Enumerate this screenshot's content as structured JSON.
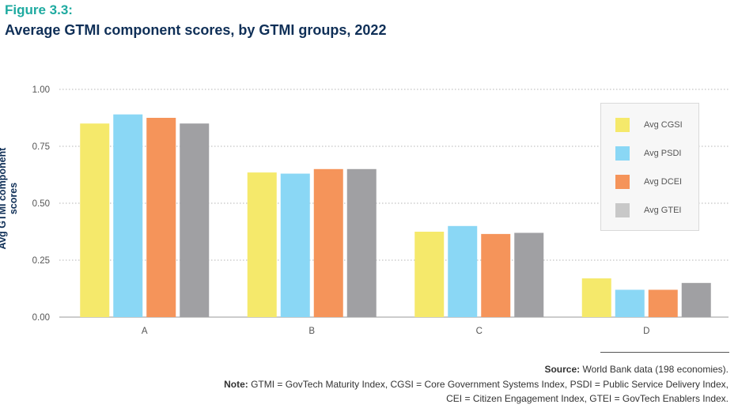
{
  "figure": {
    "label": "Figure 3.3:",
    "title": "Average GTMI component scores, by GTMI groups, 2022"
  },
  "chart_data": {
    "type": "bar",
    "categories": [
      "A",
      "B",
      "C",
      "D"
    ],
    "series": [
      {
        "name": "Avg CGSI",
        "color": "#f5e96b",
        "values": [
          0.85,
          0.635,
          0.375,
          0.17
        ]
      },
      {
        "name": "Avg PSDI",
        "color": "#8ad7f5",
        "values": [
          0.89,
          0.63,
          0.4,
          0.12
        ]
      },
      {
        "name": "Avg DCEI",
        "color": "#f5945a",
        "values": [
          0.875,
          0.65,
          0.365,
          0.12
        ]
      },
      {
        "name": "Avg GTEI",
        "color": "#a0a0a3",
        "values": [
          0.85,
          0.65,
          0.37,
          0.15
        ]
      }
    ],
    "ylabel": "Avg GTMI component scores",
    "xlabel": "",
    "ylim": [
      0,
      1
    ],
    "yticks": [
      "0.00",
      "0.25",
      "0.50",
      "0.75",
      "1.00"
    ],
    "grid": true,
    "legend_position": "right"
  },
  "legend": {
    "items": [
      {
        "label": "Avg CGSI",
        "color": "#f5e96b"
      },
      {
        "label": "Avg PSDI",
        "color": "#8ad7f5"
      },
      {
        "label": "Avg DCEI",
        "color": "#f5945a"
      },
      {
        "label": "Avg GTEI",
        "color": "#c8c8c8"
      }
    ]
  },
  "footer": {
    "source_label": "Source:",
    "source_text": " World Bank data (198 economies).",
    "note_label": "Note:",
    "note_line1": " GTMI = GovTech Maturity Index, CGSI = Core Government Systems Index, PSDI = Public Service Delivery Index,",
    "note_line2": "CEI = Citizen Engagement Index, GTEI = GovTech Enablers Index."
  }
}
